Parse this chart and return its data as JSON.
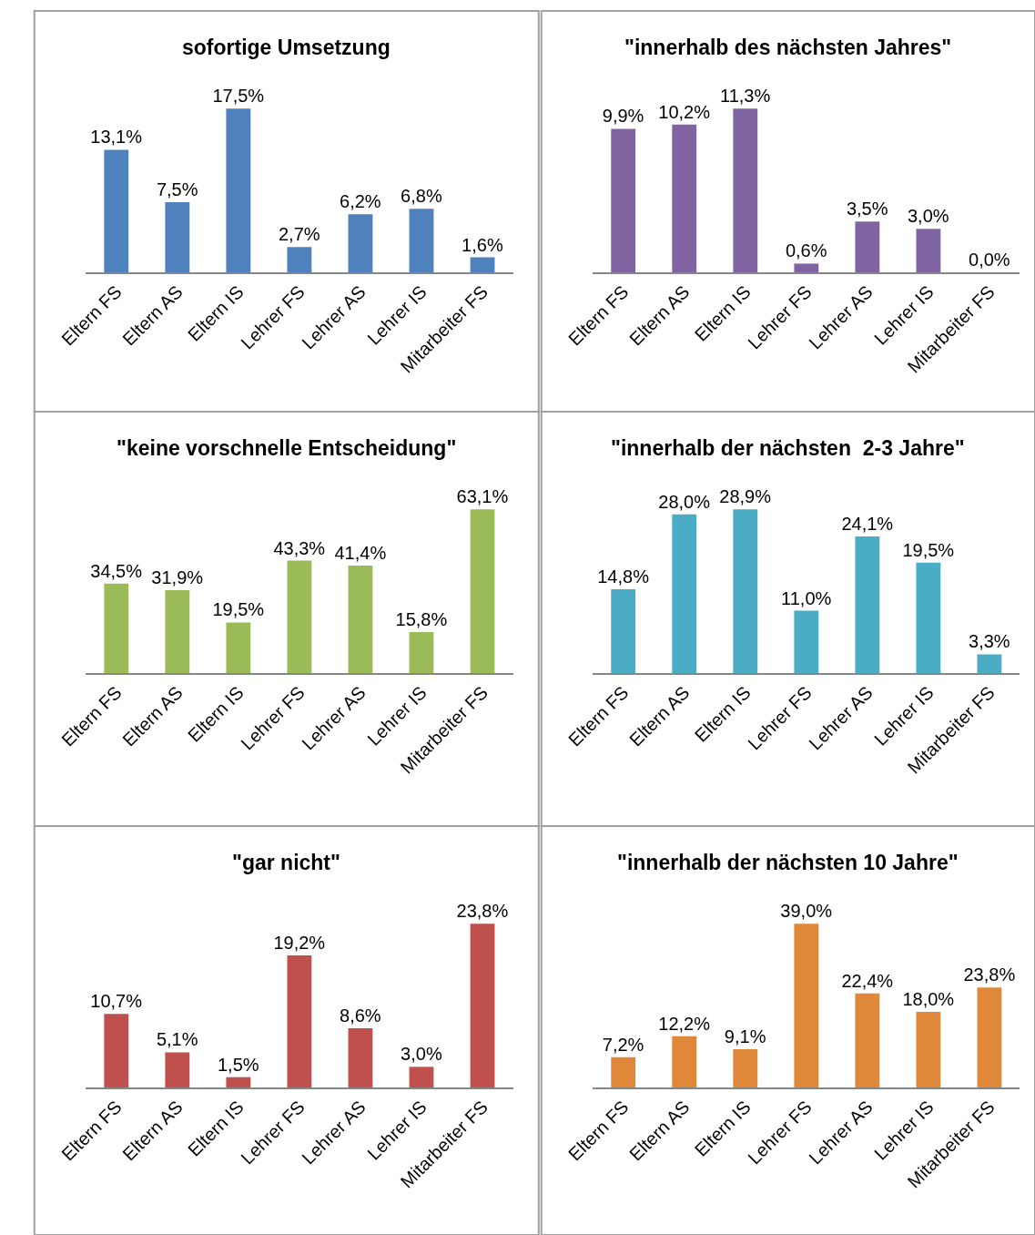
{
  "chart_data": [
    {
      "type": "bar",
      "title": "sofortige Umsetzung",
      "categories": [
        "Eltern FS",
        "Eltern AS",
        "Eltern IS",
        "Lehrer FS",
        "Lehrer AS",
        "Lehrer IS",
        "Mitarbeiter FS"
      ],
      "values": [
        13.1,
        7.5,
        17.5,
        2.7,
        6.2,
        6.8,
        1.6
      ],
      "value_labels": [
        "13,1%",
        "7,5%",
        "17,5%",
        "2,7%",
        "6,2%",
        "6,8%",
        "1,6%"
      ],
      "color": "#4f81bd"
    },
    {
      "type": "bar",
      "title": "\"innerhalb des nächsten Jahres\"",
      "categories": [
        "Eltern FS",
        "Eltern AS",
        "Eltern IS",
        "Lehrer FS",
        "Lehrer AS",
        "Lehrer IS",
        "Mitarbeiter FS"
      ],
      "values": [
        9.9,
        10.2,
        11.3,
        0.6,
        3.5,
        3.0,
        0.0
      ],
      "value_labels": [
        "9,9%",
        "10,2%",
        "11,3%",
        "0,6%",
        "3,5%",
        "3,0%",
        "0,0%"
      ],
      "color": "#8064a2"
    },
    {
      "type": "bar",
      "title": "\"keine vorschnelle Entscheidung\"",
      "categories": [
        "Eltern FS",
        "Eltern AS",
        "Eltern IS",
        "Lehrer FS",
        "Lehrer AS",
        "Lehrer IS",
        "Mitarbeiter FS"
      ],
      "values": [
        34.5,
        31.9,
        19.5,
        43.3,
        41.4,
        15.8,
        63.1
      ],
      "value_labels": [
        "34,5%",
        "31,9%",
        "19,5%",
        "43,3%",
        "41,4%",
        "15,8%",
        "63,1%"
      ],
      "color": "#9bbb59"
    },
    {
      "type": "bar",
      "title": "\"innerhalb der nächsten  2-3 Jahre\"",
      "categories": [
        "Eltern FS",
        "Eltern AS",
        "Eltern IS",
        "Lehrer FS",
        "Lehrer AS",
        "Lehrer IS",
        "Mitarbeiter FS"
      ],
      "values": [
        14.8,
        28.0,
        28.9,
        11.0,
        24.1,
        19.5,
        3.3
      ],
      "value_labels": [
        "14,8%",
        "28,0%",
        "28,9%",
        "11,0%",
        "24,1%",
        "19,5%",
        "3,3%"
      ],
      "color": "#4bacc6"
    },
    {
      "type": "bar",
      "title": "\"gar nicht\"",
      "categories": [
        "Eltern FS",
        "Eltern AS",
        "Eltern IS",
        "Lehrer FS",
        "Lehrer AS",
        "Lehrer IS",
        "Mitarbeiter FS"
      ],
      "values": [
        10.7,
        5.1,
        1.5,
        19.2,
        8.6,
        3.0,
        23.8
      ],
      "value_labels": [
        "10,7%",
        "5,1%",
        "1,5%",
        "19,2%",
        "8,6%",
        "3,0%",
        "23,8%"
      ],
      "color": "#c0504d"
    },
    {
      "type": "bar",
      "title": "\"innerhalb der nächsten 10 Jahre\"",
      "categories": [
        "Eltern FS",
        "Eltern AS",
        "Eltern IS",
        "Lehrer FS",
        "Lehrer AS",
        "Lehrer IS",
        "Mitarbeiter FS"
      ],
      "values": [
        7.2,
        12.2,
        9.1,
        39.0,
        22.4,
        18.0,
        23.8
      ],
      "value_labels": [
        "7,2%",
        "12,2%",
        "9,1%",
        "39,0%",
        "22,4%",
        "18,0%",
        "23,8%"
      ],
      "color": "#e0883a"
    }
  ]
}
